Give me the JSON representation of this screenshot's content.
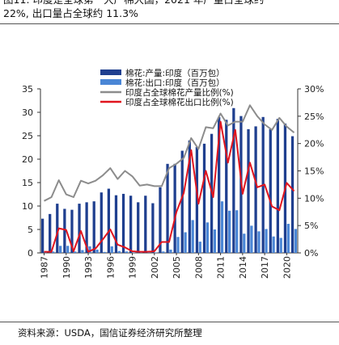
{
  "caption": {
    "line1": "图11: 印度是全球第一大产棉大国，2021 年产量占全球约",
    "line2": "22%, 出口量占全球约 11.3%"
  },
  "source": "资料来源：USDA，国信证券经济研究所整理",
  "colors": {
    "production_bar": "#1f3f8f",
    "export_bar": "#4a86d6",
    "production_share": "#8c8c8c",
    "export_share": "#e0141e"
  },
  "chart_data": {
    "type": "bar",
    "x": [
      1987,
      1988,
      1989,
      1990,
      1991,
      1992,
      1993,
      1994,
      1995,
      1996,
      1997,
      1998,
      1999,
      2000,
      2001,
      2002,
      2003,
      2004,
      2005,
      2006,
      2007,
      2008,
      2009,
      2010,
      2011,
      2012,
      2013,
      2014,
      2015,
      2016,
      2017,
      2018,
      2019,
      2020,
      2021
    ],
    "x_tick_labels": [
      "1987",
      "1990",
      "1993",
      "1996",
      "1999",
      "2002",
      "2005",
      "2008",
      "2011",
      "2014",
      "2017",
      "2020"
    ],
    "series": [
      {
        "name": "棉花:产量:印度（百万包）",
        "type": "bar",
        "axis": "left",
        "values": [
          7.3,
          8.3,
          10.5,
          9.4,
          9.2,
          10.5,
          10.8,
          11.0,
          12.9,
          13.7,
          12.3,
          12.6,
          12.2,
          10.8,
          12.2,
          10.6,
          14.0,
          19.0,
          19.0,
          21.8,
          24.0,
          22.6,
          23.3,
          25.4,
          29.0,
          28.4,
          30.9,
          29.2,
          26.4,
          27.0,
          29.0,
          26.4,
          28.6,
          27.6,
          24.9
        ]
      },
      {
        "name": "棉花:出口:印度（百万包）",
        "type": "bar",
        "axis": "left",
        "values": [
          0.2,
          0.3,
          1.5,
          1.5,
          0.3,
          0.6,
          1.4,
          0.7,
          0.2,
          1.4,
          0.4,
          0.3,
          0.1,
          0.1,
          0.1,
          0.1,
          0.3,
          0.7,
          3.4,
          4.4,
          7.0,
          2.4,
          6.5,
          5.0,
          11.0,
          9.0,
          9.1,
          4.1,
          5.8,
          4.6,
          5.1,
          3.5,
          3.2,
          6.2,
          5.1
        ]
      },
      {
        "name": "印度占全球棉花产量比例(%)",
        "type": "line",
        "axis": "right",
        "values": [
          9.5,
          10.2,
          13.3,
          10.7,
          10.2,
          13.2,
          12.7,
          13.2,
          14.2,
          15.5,
          13.5,
          15.0,
          14.0,
          12.3,
          12.5,
          12.2,
          12.2,
          15.5,
          16.3,
          17.4,
          21.0,
          19.0,
          23.0,
          22.8,
          25.5,
          23.3,
          24.0,
          24.0,
          27.0,
          25.0,
          23.5,
          22.5,
          24.7,
          23.1,
          22.0
        ]
      },
      {
        "name": "印度占全球棉花出口比例(%)",
        "type": "line",
        "axis": "right",
        "values": [
          0.2,
          0.2,
          4.5,
          4.2,
          0.3,
          4.0,
          0.2,
          0.8,
          2.5,
          4.3,
          1.5,
          1.0,
          0.3,
          0.2,
          0.2,
          0.3,
          2.0,
          2.0,
          7.5,
          11.0,
          18.8,
          9.0,
          15.0,
          10.2,
          24.0,
          16.5,
          22.5,
          10.8,
          16.5,
          12.0,
          12.5,
          8.5,
          7.8,
          12.8,
          11.3
        ]
      }
    ],
    "y_left": {
      "min": 0,
      "max": 35,
      "ticks": [
        0,
        5,
        10,
        15,
        20,
        25,
        30,
        35
      ]
    },
    "y_right": {
      "min": 0,
      "max": 30,
      "ticks": [
        "0%",
        "5%",
        "10%",
        "15%",
        "20%",
        "25%",
        "30%"
      ]
    },
    "legend": {
      "position": "top"
    }
  }
}
